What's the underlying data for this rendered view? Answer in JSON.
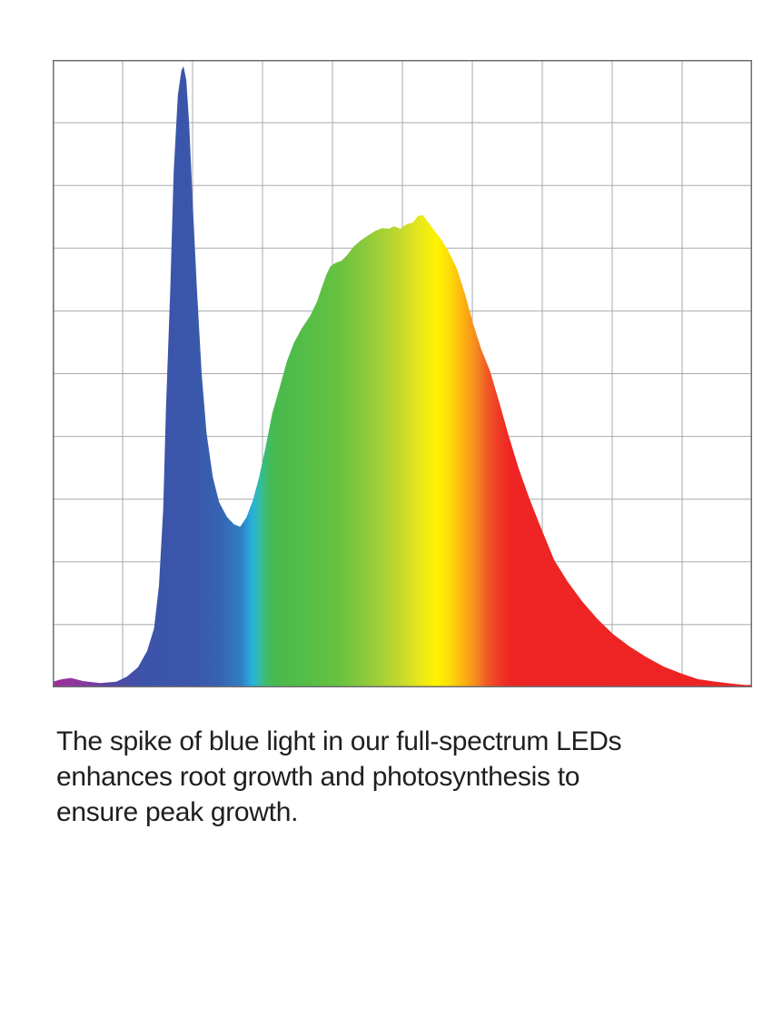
{
  "page": {
    "background_color": "#ffffff"
  },
  "chart_data": {
    "type": "area",
    "title": "",
    "xlabel": "",
    "ylabel": "",
    "x_tick_labels": [],
    "y_tick_labels": [],
    "legend": null,
    "grid": {
      "columns": 10,
      "rows": 10,
      "visible": true
    },
    "frame_color": "#6d6e71",
    "grid_color": "#a7a9ac",
    "x_range_pct": [
      0,
      100
    ],
    "y_range_pct": [
      0,
      100
    ],
    "points_pct": [
      [
        0.0,
        0.9
      ],
      [
        1.3,
        1.3
      ],
      [
        2.6,
        1.5
      ],
      [
        4.4,
        1.0
      ],
      [
        6.8,
        0.7
      ],
      [
        9.1,
        0.9
      ],
      [
        10.6,
        1.7
      ],
      [
        12.2,
        3.2
      ],
      [
        13.5,
        5.8
      ],
      [
        14.5,
        9.4
      ],
      [
        15.2,
        16.2
      ],
      [
        15.8,
        28.5
      ],
      [
        16.2,
        44.4
      ],
      [
        16.8,
        63.2
      ],
      [
        17.3,
        82.1
      ],
      [
        17.9,
        94.4
      ],
      [
        18.4,
        98.3
      ],
      [
        18.7,
        99.0
      ],
      [
        19.1,
        96.8
      ],
      [
        19.5,
        90.0
      ],
      [
        20.0,
        77.7
      ],
      [
        20.6,
        64.0
      ],
      [
        21.3,
        50.0
      ],
      [
        22.0,
        40.5
      ],
      [
        22.9,
        33.5
      ],
      [
        23.8,
        29.5
      ],
      [
        24.9,
        27.2
      ],
      [
        25.9,
        26.0
      ],
      [
        26.8,
        25.6
      ],
      [
        27.7,
        27.1
      ],
      [
        28.6,
        29.7
      ],
      [
        29.5,
        33.4
      ],
      [
        30.4,
        38.1
      ],
      [
        31.4,
        43.7
      ],
      [
        32.5,
        48.0
      ],
      [
        33.5,
        52.0
      ],
      [
        34.5,
        54.9
      ],
      [
        35.6,
        57.2
      ],
      [
        36.8,
        59.2
      ],
      [
        37.8,
        61.5
      ],
      [
        38.4,
        63.5
      ],
      [
        39.1,
        65.7
      ],
      [
        39.7,
        67.1
      ],
      [
        40.5,
        67.7
      ],
      [
        41.3,
        68.0
      ],
      [
        42.1,
        68.9
      ],
      [
        43.0,
        70.2
      ],
      [
        44.0,
        71.2
      ],
      [
        45.2,
        72.1
      ],
      [
        46.2,
        72.8
      ],
      [
        47.1,
        73.2
      ],
      [
        48.1,
        73.1
      ],
      [
        48.8,
        73.5
      ],
      [
        49.7,
        73.1
      ],
      [
        50.6,
        73.8
      ],
      [
        51.5,
        74.1
      ],
      [
        52.2,
        75.1
      ],
      [
        52.9,
        75.3
      ],
      [
        53.5,
        74.4
      ],
      [
        54.5,
        72.9
      ],
      [
        55.6,
        71.3
      ],
      [
        56.6,
        69.5
      ],
      [
        57.8,
        66.7
      ],
      [
        59.0,
        62.5
      ],
      [
        60.1,
        58.0
      ],
      [
        61.3,
        53.8
      ],
      [
        62.5,
        50.5
      ],
      [
        63.8,
        45.6
      ],
      [
        65.2,
        40.1
      ],
      [
        66.6,
        35.0
      ],
      [
        68.2,
        30.0
      ],
      [
        69.9,
        25.2
      ],
      [
        71.7,
        20.3
      ],
      [
        73.6,
        16.9
      ],
      [
        75.7,
        13.7
      ],
      [
        77.9,
        10.9
      ],
      [
        80.1,
        8.5
      ],
      [
        82.5,
        6.5
      ],
      [
        84.9,
        4.8
      ],
      [
        87.4,
        3.3
      ],
      [
        89.9,
        2.2
      ],
      [
        92.3,
        1.3
      ],
      [
        94.8,
        0.9
      ],
      [
        97.1,
        0.6
      ],
      [
        99.0,
        0.4
      ],
      [
        100.0,
        0.4
      ]
    ],
    "gradient_stops": [
      {
        "offset": 0.0,
        "color": "#A02C9B"
      },
      {
        "offset": 2.0,
        "color": "#97339B"
      },
      {
        "offset": 5.0,
        "color": "#7F3CA0"
      },
      {
        "offset": 9.0,
        "color": "#4F47A6"
      },
      {
        "offset": 13.0,
        "color": "#3C53A9"
      },
      {
        "offset": 20.0,
        "color": "#3A57AA"
      },
      {
        "offset": 24.0,
        "color": "#3763B3"
      },
      {
        "offset": 27.0,
        "color": "#2F80C4"
      },
      {
        "offset": 28.5,
        "color": "#28B0DC"
      },
      {
        "offset": 29.6,
        "color": "#31BCA4"
      },
      {
        "offset": 30.7,
        "color": "#41BC62"
      },
      {
        "offset": 32.0,
        "color": "#49B94D"
      },
      {
        "offset": 37.0,
        "color": "#57BE45"
      },
      {
        "offset": 41.0,
        "color": "#69C240"
      },
      {
        "offset": 45.0,
        "color": "#8FCA3B"
      },
      {
        "offset": 48.5,
        "color": "#B5D431"
      },
      {
        "offset": 51.0,
        "color": "#D5E025"
      },
      {
        "offset": 53.0,
        "color": "#EFE913"
      },
      {
        "offset": 55.0,
        "color": "#FEF200"
      },
      {
        "offset": 57.0,
        "color": "#FDD808"
      },
      {
        "offset": 59.0,
        "color": "#FBAB13"
      },
      {
        "offset": 60.5,
        "color": "#F68A1F"
      },
      {
        "offset": 62.0,
        "color": "#F15C26"
      },
      {
        "offset": 63.7,
        "color": "#EF3A25"
      },
      {
        "offset": 65.5,
        "color": "#EE2524"
      },
      {
        "offset": 100.0,
        "color": "#EE2424"
      }
    ]
  },
  "caption": {
    "text": "The spike of blue light in our full-spectrum LEDs\nenhances root growth and photosynthesis to\nensure peak growth."
  }
}
